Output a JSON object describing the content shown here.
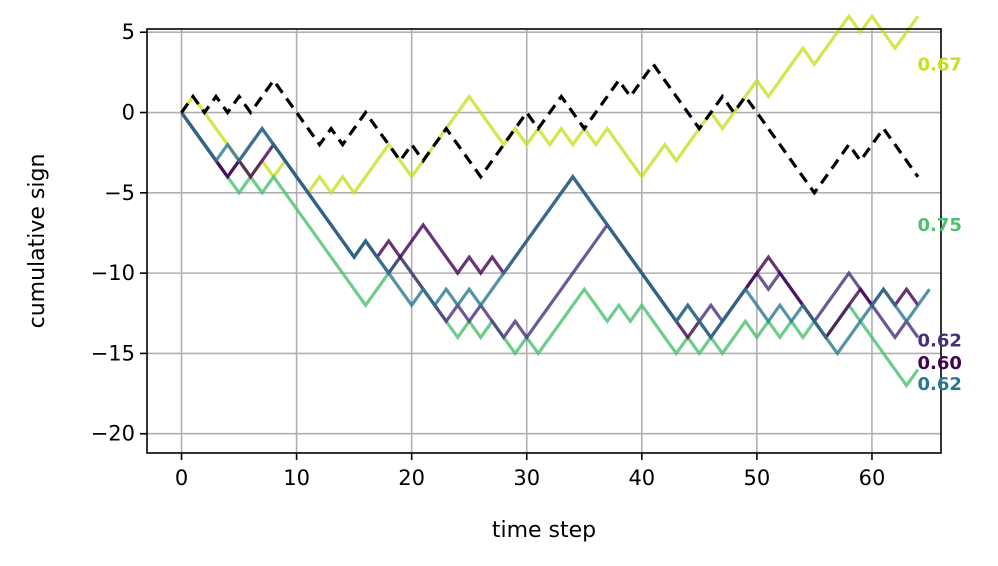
{
  "chart_data": {
    "type": "line",
    "xlabel": "time step",
    "ylabel": "cumulative sign",
    "xlim": [
      -3,
      66
    ],
    "ylim": [
      -21.2,
      5.2
    ],
    "xticks": [
      0,
      10,
      20,
      30,
      40,
      50,
      60
    ],
    "yticks": [
      5,
      0,
      -5,
      -10,
      -15,
      -20
    ],
    "ytick_labels": [
      "5",
      "0",
      "−5",
      "−10",
      "−15",
      "−20"
    ],
    "grid": true,
    "series": [
      {
        "label": "0.67",
        "color": "#c7e020",
        "dashed": false,
        "steps": "+-----+-+--+-+-+++--+++++---+-+-+-+-+---++-+++-+++-+++-+++-+--++"
      },
      {
        "label": "0.75",
        "color": "#4ac16d",
        "dashed": false,
        "steps": "-----+-+--------+++-----+-+--+-++++--+-+---+-+-++-+-+-+-++-----+"
      },
      {
        "label": "0.62",
        "color": "#472f7d",
        "dashed": false,
        "steps": "----+++--------+--+----+-+--+-+++++++------+-+-+++-+---+++----+-"
      },
      {
        "label": "0.60",
        "color": "#440154",
        "dashed": false,
        "steps": "----+-++-------+-+-++---+-+-++++++----------+-+++++-----+++-+-+-"
      },
      {
        "label": "0.62",
        "color": "#2a788e",
        "dashed": false,
        "steps": "---+-++--------+----+-+-+-++++++++---------+--+++--+-+---++++--++"
      },
      {
        "label": "",
        "color": "#000000",
        "dashed": true,
        "steps": "+-+-+-++----+-++---+-++---++++-++--+++-++----++-+------+++-++---"
      }
    ],
    "annotations": [
      {
        "text": "0.67",
        "color": "#c7e020",
        "x": 63,
        "y": 3
      },
      {
        "text": "0.75",
        "color": "#4ac16d",
        "x": 63,
        "y": -7
      },
      {
        "text": "0.62",
        "color": "#472f7d",
        "x": 63,
        "y": -14.2
      },
      {
        "text": "0.60",
        "color": "#440154",
        "x": 63,
        "y": -15.6
      },
      {
        "text": "0.62",
        "color": "#2a788e",
        "x": 63,
        "y": -16.9
      }
    ]
  }
}
